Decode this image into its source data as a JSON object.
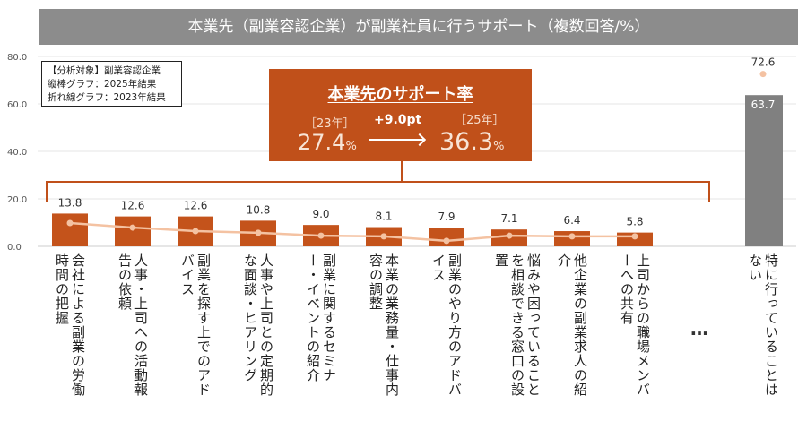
{
  "title": "本業先（副業容認企業）が副業社員に行うサポート（複数回答/%）",
  "legend": {
    "line1": "【分析対象】副業容認企業",
    "line2": "縦棒グラフ：2025年結果",
    "line3": "折れ線グラフ：2023年結果"
  },
  "callout": {
    "heading": "本業先のサポート率",
    "year_a": "［23年］",
    "value_a": "27.4",
    "year_b": "［25年］",
    "value_b": "36.3",
    "unit": "%",
    "diff": "+9.0pt"
  },
  "ellipsis": "…",
  "colors": {
    "bar": "#c4531b",
    "bar_none": "#808080",
    "line": "#f4c2a2",
    "title_bg": "#8c8c8c",
    "callout": "#c0501a"
  },
  "chart_data": {
    "type": "bar",
    "ylim": [
      0,
      80
    ],
    "yticks": [
      "0.0",
      "20.0",
      "40.0",
      "60.0",
      "80.0"
    ],
    "grid": true,
    "categories": [
      "会社による副業の労働時間の把握",
      "人事・上司への活動報告の依頼",
      "副業を探す上でのアドバイス",
      "人事や上司との定期的な面談・ヒアリング",
      "副業に関するセミナー・イベントの紹介",
      "本業の業務量・仕事内容の調整",
      "副業のやり方のアドバイス",
      "悩みや困っていることを相談できる窓口の設置",
      "他企業の副業求人の紹介",
      "上司からの職場メンバーへの共有",
      "特に行っていることはない"
    ],
    "series": [
      {
        "name": "2025年結果",
        "type": "bar",
        "values": [
          13.8,
          12.6,
          12.6,
          10.8,
          9.0,
          8.1,
          7.9,
          7.1,
          6.4,
          5.8,
          63.7
        ]
      },
      {
        "name": "2023年結果",
        "type": "line",
        "values": [
          9.8,
          7.9,
          6.4,
          5.7,
          4.5,
          4.2,
          2.3,
          4.5,
          4.2,
          4.2,
          72.6
        ]
      }
    ],
    "bar_labels": [
      "13.8",
      "12.6",
      "12.6",
      "10.8",
      "9.0",
      "8.1",
      "7.9",
      "7.1",
      "6.4",
      "5.8",
      "63.7"
    ],
    "line_labels_shown": {
      "10": "72.6"
    }
  }
}
